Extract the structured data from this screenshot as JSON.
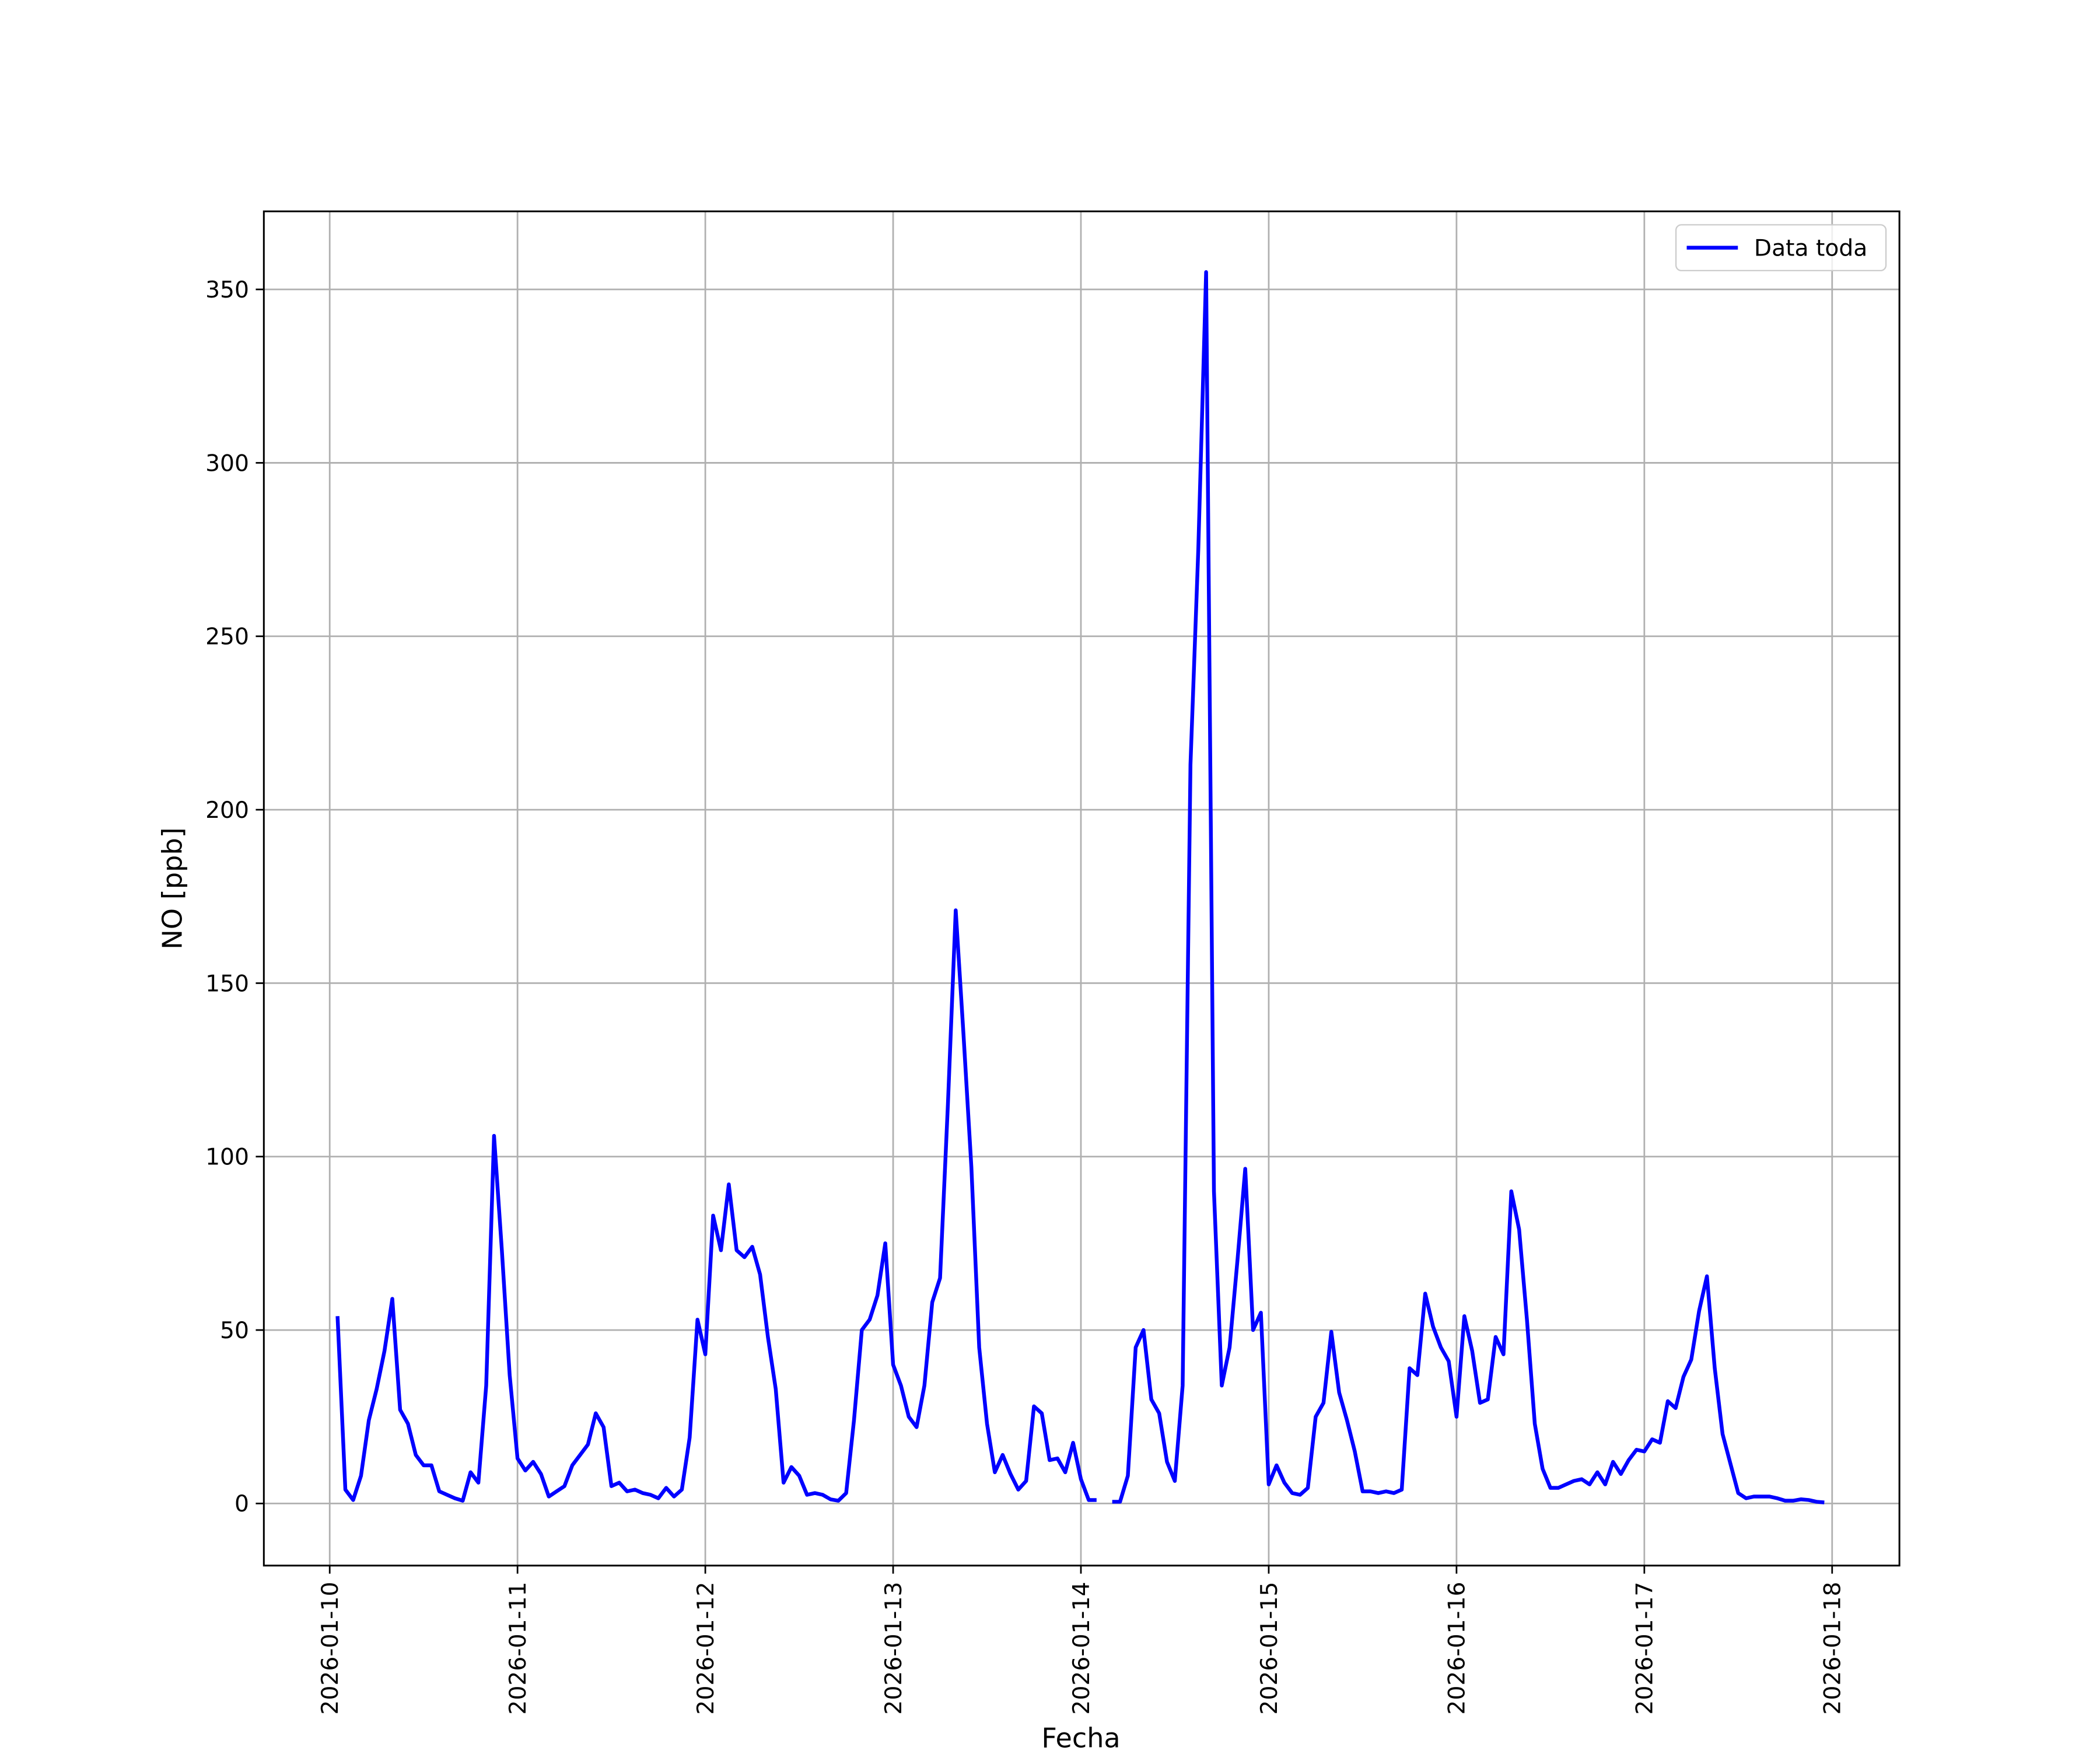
{
  "chart_data": {
    "type": "line",
    "x_label": "Fecha",
    "y_label": "NO [ppb]",
    "xlim": [
      "2026-01-09 15:35",
      "2026-01-18 08:36"
    ],
    "xticks": [
      "2026-01-10",
      "2026-01-11",
      "2026-01-12",
      "2026-01-13",
      "2026-01-14",
      "2026-01-15",
      "2026-01-16",
      "2026-01-17",
      "2026-01-18"
    ],
    "ylim": [
      -17.9,
      372.5
    ],
    "yticks": [
      0,
      50,
      100,
      150,
      200,
      250,
      300,
      350
    ],
    "grid": true,
    "legend": "upper right",
    "x": [
      "2026-01-10 01:00",
      "2026-01-10 02:00",
      "2026-01-10 03:00",
      "2026-01-10 04:00",
      "2026-01-10 05:00",
      "2026-01-10 06:00",
      "2026-01-10 07:00",
      "2026-01-10 08:00",
      "2026-01-10 09:00",
      "2026-01-10 10:00",
      "2026-01-10 11:00",
      "2026-01-10 12:00",
      "2026-01-10 13:00",
      "2026-01-10 14:00",
      "2026-01-10 15:00",
      "2026-01-10 16:00",
      "2026-01-10 17:00",
      "2026-01-10 18:00",
      "2026-01-10 19:00",
      "2026-01-10 20:00",
      "2026-01-10 21:00",
      "2026-01-10 22:00",
      "2026-01-10 23:00",
      "2026-01-11 00:00",
      "2026-01-11 01:00",
      "2026-01-11 02:00",
      "2026-01-11 03:00",
      "2026-01-11 04:00",
      "2026-01-11 05:00",
      "2026-01-11 06:00",
      "2026-01-11 07:00",
      "2026-01-11 08:00",
      "2026-01-11 09:00",
      "2026-01-11 10:00",
      "2026-01-11 11:00",
      "2026-01-11 12:00",
      "2026-01-11 13:00",
      "2026-01-11 14:00",
      "2026-01-11 15:00",
      "2026-01-11 16:00",
      "2026-01-11 17:00",
      "2026-01-11 18:00",
      "2026-01-11 19:00",
      "2026-01-11 20:00",
      "2026-01-11 21:00",
      "2026-01-11 22:00",
      "2026-01-11 23:00",
      "2026-01-12 00:00",
      "2026-01-12 01:00",
      "2026-01-12 02:00",
      "2026-01-12 03:00",
      "2026-01-12 04:00",
      "2026-01-12 05:00",
      "2026-01-12 06:00",
      "2026-01-12 07:00",
      "2026-01-12 08:00",
      "2026-01-12 09:00",
      "2026-01-12 10:00",
      "2026-01-12 11:00",
      "2026-01-12 12:00",
      "2026-01-12 13:00",
      "2026-01-12 14:00",
      "2026-01-12 15:00",
      "2026-01-12 16:00",
      "2026-01-12 17:00",
      "2026-01-12 18:00",
      "2026-01-12 19:00",
      "2026-01-12 20:00",
      "2026-01-12 21:00",
      "2026-01-12 22:00",
      "2026-01-12 23:00",
      "2026-01-13 00:00",
      "2026-01-13 01:00",
      "2026-01-13 02:00",
      "2026-01-13 03:00",
      "2026-01-13 04:00",
      "2026-01-13 05:00",
      "2026-01-13 06:00",
      "2026-01-13 07:00",
      "2026-01-13 08:00",
      "2026-01-13 09:00",
      "2026-01-13 10:00",
      "2026-01-13 11:00",
      "2026-01-13 12:00",
      "2026-01-13 13:00",
      "2026-01-13 14:00",
      "2026-01-13 15:00",
      "2026-01-13 16:00",
      "2026-01-13 17:00",
      "2026-01-13 18:00",
      "2026-01-13 19:00",
      "2026-01-13 20:00",
      "2026-01-13 21:00",
      "2026-01-13 22:00",
      "2026-01-13 23:00",
      "2026-01-14 00:00",
      "2026-01-14 01:00",
      "2026-01-14 02:00",
      "2026-01-14 03:00",
      "2026-01-14 04:00",
      "2026-01-14 05:00",
      "2026-01-14 06:00",
      "2026-01-14 07:00",
      "2026-01-14 08:00",
      "2026-01-14 09:00",
      "2026-01-14 10:00",
      "2026-01-14 11:00",
      "2026-01-14 12:00",
      "2026-01-14 13:00",
      "2026-01-14 14:00",
      "2026-01-14 15:00",
      "2026-01-14 16:00",
      "2026-01-14 17:00",
      "2026-01-14 18:00",
      "2026-01-14 19:00",
      "2026-01-14 20:00",
      "2026-01-14 21:00",
      "2026-01-14 22:00",
      "2026-01-14 23:00",
      "2026-01-15 00:00",
      "2026-01-15 01:00",
      "2026-01-15 02:00",
      "2026-01-15 03:00",
      "2026-01-15 04:00",
      "2026-01-15 05:00",
      "2026-01-15 06:00",
      "2026-01-15 07:00",
      "2026-01-15 08:00",
      "2026-01-15 09:00",
      "2026-01-15 10:00",
      "2026-01-15 11:00",
      "2026-01-15 12:00",
      "2026-01-15 13:00",
      "2026-01-15 14:00",
      "2026-01-15 15:00",
      "2026-01-15 16:00",
      "2026-01-15 17:00",
      "2026-01-15 18:00",
      "2026-01-15 19:00",
      "2026-01-15 20:00",
      "2026-01-15 21:00",
      "2026-01-15 22:00",
      "2026-01-15 23:00",
      "2026-01-16 00:00",
      "2026-01-16 01:00",
      "2026-01-16 02:00",
      "2026-01-16 03:00",
      "2026-01-16 04:00",
      "2026-01-16 05:00",
      "2026-01-16 06:00",
      "2026-01-16 07:00",
      "2026-01-16 08:00",
      "2026-01-16 09:00",
      "2026-01-16 10:00",
      "2026-01-16 11:00",
      "2026-01-16 12:00",
      "2026-01-16 13:00",
      "2026-01-16 14:00",
      "2026-01-16 15:00",
      "2026-01-16 16:00",
      "2026-01-16 17:00",
      "2026-01-16 18:00",
      "2026-01-16 19:00",
      "2026-01-16 20:00",
      "2026-01-16 21:00",
      "2026-01-16 22:00",
      "2026-01-16 23:00",
      "2026-01-17 00:00",
      "2026-01-17 01:00",
      "2026-01-17 02:00",
      "2026-01-17 03:00",
      "2026-01-17 04:00",
      "2026-01-17 05:00",
      "2026-01-17 06:00",
      "2026-01-17 07:00",
      "2026-01-17 08:00",
      "2026-01-17 09:00",
      "2026-01-17 10:00",
      "2026-01-17 11:00",
      "2026-01-17 12:00",
      "2026-01-17 13:00",
      "2026-01-17 14:00",
      "2026-01-17 15:00",
      "2026-01-17 16:00",
      "2026-01-17 17:00",
      "2026-01-17 18:00",
      "2026-01-17 19:00",
      "2026-01-17 20:00",
      "2026-01-17 21:00",
      "2026-01-17 22:00",
      "2026-01-17 23:00"
    ],
    "series": [
      {
        "name": "Data toda",
        "color": "#0000ff",
        "values": [
          54,
          4,
          1,
          8,
          24,
          33,
          44,
          59,
          27,
          23,
          14,
          11,
          11,
          3.5,
          2.5,
          1.5,
          0.8,
          9,
          6,
          34,
          106,
          73,
          37,
          13,
          9.5,
          12,
          8.5,
          2,
          3.5,
          5,
          11,
          14,
          17,
          26,
          22,
          5,
          6,
          3.5,
          4,
          3,
          2.5,
          1.5,
          4.5,
          2,
          4,
          19,
          53,
          43,
          83,
          73,
          92,
          73,
          71,
          74,
          66,
          48,
          33,
          6,
          10.5,
          8,
          2.5,
          3,
          2.5,
          1.2,
          0.8,
          3,
          24,
          50,
          53,
          60,
          75,
          40,
          34,
          25,
          22,
          34,
          58,
          65,
          115,
          171,
          135,
          97,
          45,
          23,
          9,
          14,
          8.5,
          4,
          6.5,
          28,
          26,
          12.5,
          13,
          9,
          17.5,
          7,
          1,
          1,
          null,
          0.5,
          0.5,
          8,
          45,
          50,
          30,
          26,
          12,
          6.5,
          34,
          213,
          275,
          355,
          90,
          34,
          45,
          70,
          96.5,
          50,
          55,
          5.5,
          11,
          6,
          3,
          2.5,
          4.5,
          25,
          29,
          49.5,
          32,
          24,
          15,
          3.5,
          3.5,
          3,
          3.5,
          3,
          4,
          39,
          37,
          60.5,
          51,
          45,
          41,
          25,
          54,
          44,
          29,
          30,
          48,
          43,
          90,
          79,
          53,
          23,
          10,
          4.5,
          4.5,
          5.5,
          6.5,
          7,
          5.5,
          9,
          5.5,
          12,
          8.5,
          12.5,
          15.5,
          15,
          18.5,
          17.5,
          29.5,
          27.5,
          36.5,
          41.5,
          55.5,
          65.5,
          39,
          20,
          11.5,
          3,
          1.5,
          2,
          2,
          2,
          1.5,
          0.8,
          0.8,
          1.2,
          1,
          0.5,
          0.3
        ]
      }
    ]
  }
}
